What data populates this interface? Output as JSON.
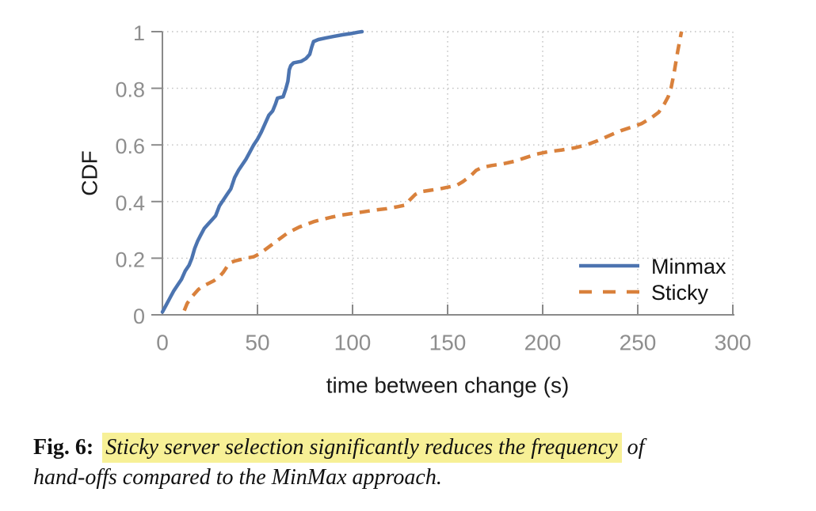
{
  "figure": {
    "caption": {
      "label": "Fig. 6:",
      "highlighted": "Sticky server selection significantly reduces the frequency",
      "after_highlight": "of",
      "line2": "hand-offs compared to the MinMax approach."
    }
  },
  "colors": {
    "minmax_blue": "#4c74b0",
    "sticky_orange": "#d9813c",
    "grid_gray": "#c2c2c2",
    "axis_gray": "#8a8a8a",
    "tick_label_gray": "#8e8e8e",
    "label_black": "#1a1a1a",
    "legend_text_black": "#111111",
    "highlight_yellow": "#f7f096"
  },
  "chart_data": {
    "type": "line",
    "title": "",
    "xlabel": "time between change (s)",
    "ylabel": "CDF",
    "xlim": [
      0,
      300
    ],
    "ylim": [
      0,
      1
    ],
    "grid": "dotted",
    "x_ticks": {
      "values": [
        0,
        50,
        100,
        150,
        200,
        250,
        300
      ],
      "labels": [
        "0",
        "50",
        "100",
        "150",
        "200",
        "250",
        "300"
      ]
    },
    "y_ticks": {
      "values": [
        0,
        0.2,
        0.4,
        0.6,
        0.8,
        1
      ],
      "labels": [
        "0",
        "0.2",
        "0.4",
        "0.6",
        "0.8",
        "1"
      ]
    },
    "legend": {
      "position": "lower right",
      "frame": false,
      "entries": [
        "Minmax",
        "Sticky"
      ]
    },
    "series": [
      {
        "name": "Minmax",
        "color_key": "minmax_blue",
        "line_style": "solid",
        "points": [
          [
            0,
            0.01
          ],
          [
            2,
            0.035
          ],
          [
            4,
            0.06
          ],
          [
            6,
            0.085
          ],
          [
            8,
            0.105
          ],
          [
            10,
            0.125
          ],
          [
            12,
            0.155
          ],
          [
            14,
            0.175
          ],
          [
            15.5,
            0.2
          ],
          [
            17,
            0.235
          ],
          [
            18.5,
            0.26
          ],
          [
            20,
            0.28
          ],
          [
            22,
            0.305
          ],
          [
            24,
            0.32
          ],
          [
            26,
            0.335
          ],
          [
            28,
            0.35
          ],
          [
            30,
            0.385
          ],
          [
            32,
            0.405
          ],
          [
            34,
            0.425
          ],
          [
            36,
            0.445
          ],
          [
            38,
            0.485
          ],
          [
            40,
            0.51
          ],
          [
            42,
            0.53
          ],
          [
            44,
            0.55
          ],
          [
            46,
            0.575
          ],
          [
            48,
            0.6
          ],
          [
            50,
            0.62
          ],
          [
            52,
            0.645
          ],
          [
            54,
            0.675
          ],
          [
            56,
            0.705
          ],
          [
            58,
            0.72
          ],
          [
            59.5,
            0.745
          ],
          [
            60.5,
            0.765
          ],
          [
            63.5,
            0.77
          ],
          [
            65,
            0.8
          ],
          [
            66,
            0.825
          ],
          [
            66.7,
            0.865
          ],
          [
            67.5,
            0.88
          ],
          [
            69,
            0.89
          ],
          [
            73,
            0.895
          ],
          [
            75.5,
            0.905
          ],
          [
            77.5,
            0.92
          ],
          [
            78.5,
            0.945
          ],
          [
            79.5,
            0.965
          ],
          [
            82,
            0.972
          ],
          [
            86,
            0.978
          ],
          [
            90,
            0.983
          ],
          [
            95,
            0.989
          ],
          [
            100,
            0.994
          ],
          [
            103,
            0.998
          ],
          [
            105,
            1
          ]
        ]
      },
      {
        "name": "Sticky",
        "color_key": "sticky_orange",
        "line_style": "dashed",
        "points": [
          [
            11.5,
            0.015
          ],
          [
            13,
            0.04
          ],
          [
            15,
            0.06
          ],
          [
            17,
            0.075
          ],
          [
            19,
            0.09
          ],
          [
            21,
            0.1
          ],
          [
            24,
            0.11
          ],
          [
            27,
            0.12
          ],
          [
            30,
            0.135
          ],
          [
            32,
            0.15
          ],
          [
            34,
            0.17
          ],
          [
            36,
            0.185
          ],
          [
            38,
            0.19
          ],
          [
            41,
            0.195
          ],
          [
            44,
            0.2
          ],
          [
            48,
            0.205
          ],
          [
            51,
            0.215
          ],
          [
            54,
            0.23
          ],
          [
            57,
            0.245
          ],
          [
            60,
            0.26
          ],
          [
            63,
            0.275
          ],
          [
            66,
            0.29
          ],
          [
            69,
            0.3
          ],
          [
            72,
            0.31
          ],
          [
            76,
            0.32
          ],
          [
            80,
            0.33
          ],
          [
            84,
            0.337
          ],
          [
            89,
            0.345
          ],
          [
            94,
            0.352
          ],
          [
            100,
            0.358
          ],
          [
            106,
            0.364
          ],
          [
            112,
            0.37
          ],
          [
            118,
            0.375
          ],
          [
            124,
            0.382
          ],
          [
            128,
            0.388
          ],
          [
            130,
            0.405
          ],
          [
            133,
            0.425
          ],
          [
            136,
            0.435
          ],
          [
            141,
            0.44
          ],
          [
            146,
            0.445
          ],
          [
            151,
            0.452
          ],
          [
            155,
            0.458
          ],
          [
            158,
            0.47
          ],
          [
            162,
            0.49
          ],
          [
            165,
            0.51
          ],
          [
            168,
            0.52
          ],
          [
            173,
            0.527
          ],
          [
            179,
            0.533
          ],
          [
            185,
            0.542
          ],
          [
            191,
            0.555
          ],
          [
            197,
            0.568
          ],
          [
            203,
            0.576
          ],
          [
            210,
            0.582
          ],
          [
            217,
            0.59
          ],
          [
            223,
            0.6
          ],
          [
            229,
            0.615
          ],
          [
            235,
            0.633
          ],
          [
            241,
            0.65
          ],
          [
            247,
            0.663
          ],
          [
            252,
            0.675
          ],
          [
            257,
            0.695
          ],
          [
            261,
            0.715
          ],
          [
            264,
            0.745
          ],
          [
            266,
            0.77
          ],
          [
            267.5,
            0.8
          ],
          [
            269,
            0.85
          ],
          [
            270,
            0.89
          ],
          [
            271,
            0.93
          ],
          [
            272,
            0.965
          ],
          [
            273,
            1
          ]
        ]
      }
    ]
  }
}
